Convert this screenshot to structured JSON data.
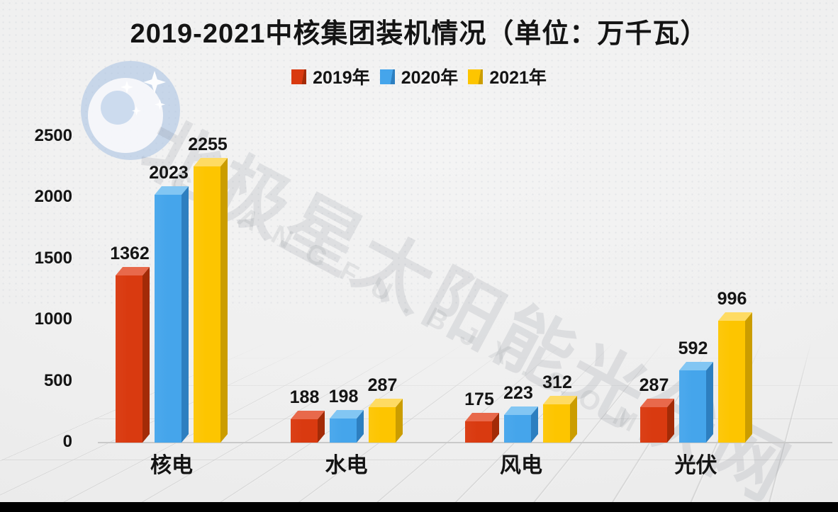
{
  "watermark": {
    "logo": "bjx-polar-star-logo",
    "text": "北极星太阳能光伏网",
    "subtext": "GUANGFU.BJX.COM"
  },
  "chart_data": {
    "type": "bar",
    "title": "2019-2021中核集团装机情况（单位：万千瓦）",
    "categories": [
      "核电",
      "水电",
      "风电",
      "光伏"
    ],
    "series": [
      {
        "name": "2019年",
        "color": "#d93a10",
        "side_color": "#a32b07",
        "top_color": "#e8694b",
        "values": [
          1362,
          188,
          175,
          287
        ]
      },
      {
        "name": "2020年",
        "color": "#45a5eb",
        "side_color": "#2d7fc0",
        "top_color": "#82c6f3",
        "values": [
          2023,
          198,
          223,
          592
        ]
      },
      {
        "name": "2021年",
        "color": "#fdc500",
        "side_color": "#cb9d00",
        "top_color": "#fedb63",
        "values": [
          2255,
          287,
          312,
          996
        ]
      }
    ],
    "yticks": [
      0,
      500,
      1000,
      1500,
      2000,
      2500
    ],
    "ylim": [
      0,
      2500
    ],
    "xlabel": "",
    "ylabel": "",
    "grid": false,
    "legend_position": "top",
    "value_labels": true,
    "style": "3d-bars"
  }
}
